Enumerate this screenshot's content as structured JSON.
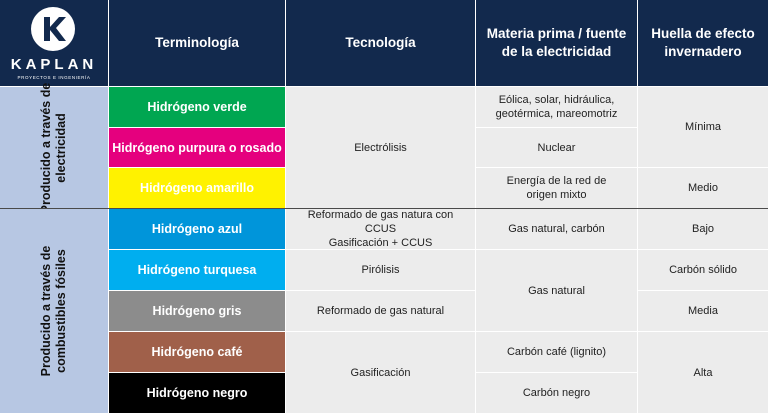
{
  "logo": {
    "icon": "k-letter-icon",
    "word": "KAPLAN",
    "tagline": "PROYECTOS E INGENIERÍA"
  },
  "header": {
    "terminology": "Terminología",
    "technology": "Tecnología",
    "source": "Materia prima / fuente de la electricidad",
    "footprint": "Huella de efecto invernadero"
  },
  "groups": {
    "electricity": "Producido a través de electricidad",
    "fossil": "Producido a través de combustibles fósiles"
  },
  "terms": [
    {
      "label": "Hidrógeno verde",
      "color": "#00a651",
      "text_color": "#ffffff"
    },
    {
      "label": "Hidrógeno purpura o rosado",
      "color": "#e5007e",
      "text_color": "#ffffff"
    },
    {
      "label": "Hidrógeno amarillo",
      "color": "#fff200",
      "text_color": "#ffffff"
    },
    {
      "label": "Hidrógeno azul",
      "color": "#0095da",
      "text_color": "#ffffff"
    },
    {
      "label": "Hidrógeno turquesa",
      "color": "#00aeef",
      "text_color": "#ffffff"
    },
    {
      "label": "Hidrógeno gris",
      "color": "#8c8c8c",
      "text_color": "#ffffff"
    },
    {
      "label": "Hidrógeno café",
      "color": "#a0604a",
      "text_color": "#ffffff"
    },
    {
      "label": "Hidrógeno negro",
      "color": "#000000",
      "text_color": "#ffffff"
    }
  ],
  "technology": {
    "electrolysis": "Electrólisis",
    "blue_line1": "Reformado de gas natura con CCUS",
    "blue_line2": "Gasificación + CCUS",
    "pyrolysis": "Pirólisis",
    "reforming": "Reformado de gas natural",
    "gasification": "Gasificación"
  },
  "source": {
    "green": "Eólica, solar, hidráulica, geotérmica, mareomotriz",
    "pink": "Nuclear",
    "yellow": "Energía de la red de origen mixto",
    "blue": "Gas natural, carbón",
    "natural_gas": "Gas natural",
    "brown": "Carbón café (lignito)",
    "black": "Carbón negro"
  },
  "footprint": {
    "minimal": "Mínima",
    "medium_m": "Medio",
    "low": "Bajo",
    "solid_carbon": "Carbón sólido",
    "medium_f": "Media",
    "high": "Alta"
  },
  "colors": {
    "header_bg": "#12294d",
    "group_bg": "#b7c7e3",
    "cell_bg": "#ececec"
  }
}
